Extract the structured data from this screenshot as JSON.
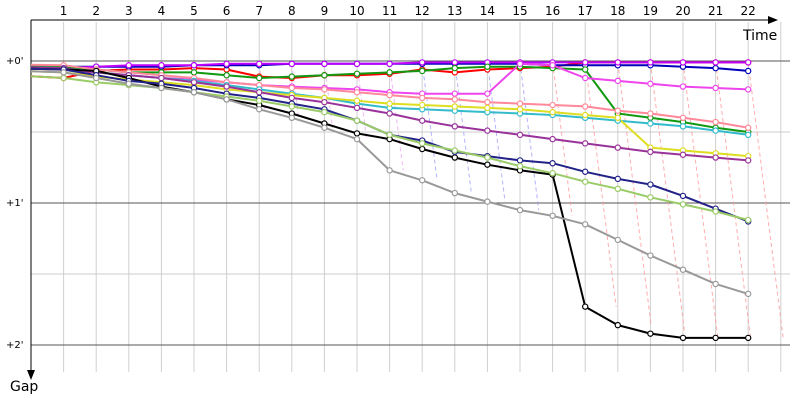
{
  "chart_data": {
    "type": "line",
    "title": "",
    "xlabel": "Time",
    "ylabel": "Gap",
    "x_ticks": [
      "1",
      "2",
      "3",
      "4",
      "5",
      "6",
      "7",
      "8",
      "9",
      "10",
      "11",
      "12",
      "13",
      "14",
      "15",
      "16",
      "17",
      "18",
      "19",
      "20",
      "21",
      "22"
    ],
    "y_ticks": [
      "+0'",
      "+1'",
      "+2'"
    ],
    "xlim": [
      0,
      23.5
    ],
    "ylim": [
      -0.14,
      2.3
    ],
    "grid": true,
    "legend": "none",
    "series": [
      {
        "color": "#ff0000",
        "values": [
          0.12,
          0.07,
          0.06,
          0.06,
          0.05,
          0.06,
          0.11,
          0.12,
          0.1,
          0.1,
          0.09,
          0.06,
          0.08,
          0.06,
          0.05,
          0.04,
          0.01,
          0.01,
          0.01,
          0.01,
          0.01,
          0.01
        ]
      },
      {
        "color": "#0000bb",
        "values": [
          0.04,
          0.04,
          0.04,
          0.04,
          0.03,
          0.03,
          0.03,
          0.02,
          0.02,
          0.02,
          0.02,
          0.02,
          0.02,
          0.02,
          0.02,
          0.03,
          0.03,
          0.03,
          0.03,
          0.04,
          0.05,
          0.07
        ]
      },
      {
        "color": "#c000ff",
        "values": [
          0.05,
          0.04,
          0.03,
          0.03,
          0.03,
          0.02,
          0.02,
          0.02,
          0.02,
          0.02,
          0.02,
          0.01,
          0.01,
          0.01,
          0.01,
          0.01,
          0.01,
          0.01,
          0.01,
          0.01,
          0.01,
          0.01
        ]
      },
      {
        "color": "#119911",
        "values": [
          0.04,
          0.06,
          0.08,
          0.08,
          0.08,
          0.1,
          0.12,
          0.11,
          0.1,
          0.09,
          0.08,
          0.07,
          0.05,
          0.04,
          0.04,
          0.05,
          0.06,
          0.37,
          0.4,
          0.43,
          0.47,
          0.5
        ]
      },
      {
        "color": "#ee44ee",
        "values": [
          0.06,
          0.08,
          0.1,
          0.12,
          0.13,
          0.15,
          0.17,
          0.18,
          0.19,
          0.2,
          0.22,
          0.23,
          0.23,
          0.23,
          0.02,
          0.03,
          0.12,
          0.14,
          0.16,
          0.18,
          0.19,
          0.2
        ]
      },
      {
        "color": "#ff8899",
        "values": [
          0.03,
          0.06,
          0.08,
          0.1,
          0.12,
          0.15,
          0.17,
          0.19,
          0.2,
          0.22,
          0.24,
          0.26,
          0.27,
          0.29,
          0.3,
          0.31,
          0.32,
          0.35,
          0.37,
          0.4,
          0.43,
          0.47
        ]
      },
      {
        "color": "#33bbcc",
        "values": [
          0.05,
          0.08,
          0.1,
          0.12,
          0.14,
          0.17,
          0.2,
          0.23,
          0.26,
          0.3,
          0.33,
          0.34,
          0.35,
          0.36,
          0.37,
          0.38,
          0.4,
          0.42,
          0.44,
          0.46,
          0.49,
          0.52
        ]
      },
      {
        "color": "#dddd22",
        "values": [
          0.08,
          0.11,
          0.13,
          0.15,
          0.17,
          0.2,
          0.22,
          0.24,
          0.26,
          0.28,
          0.3,
          0.31,
          0.32,
          0.33,
          0.34,
          0.36,
          0.38,
          0.4,
          0.61,
          0.63,
          0.65,
          0.67
        ]
      },
      {
        "color": "#993399",
        "values": [
          0.05,
          0.08,
          0.1,
          0.12,
          0.15,
          0.18,
          0.22,
          0.26,
          0.29,
          0.33,
          0.37,
          0.42,
          0.46,
          0.49,
          0.52,
          0.55,
          0.58,
          0.61,
          0.64,
          0.66,
          0.68,
          0.7
        ]
      },
      {
        "color": "#000000",
        "values": [
          0.06,
          0.07,
          0.12,
          0.18,
          0.22,
          0.27,
          0.31,
          0.37,
          0.44,
          0.51,
          0.55,
          0.62,
          0.68,
          0.73,
          0.77,
          0.8,
          1.73,
          1.86,
          1.92,
          1.95,
          1.95,
          1.95
        ]
      },
      {
        "color": "#222288",
        "values": [
          0.06,
          0.1,
          0.14,
          0.16,
          0.19,
          0.23,
          0.26,
          0.3,
          0.34,
          0.42,
          0.52,
          0.56,
          0.64,
          0.67,
          0.7,
          0.72,
          0.78,
          0.83,
          0.87,
          0.95,
          1.04,
          1.13
        ]
      },
      {
        "color": "#99cc66",
        "values": [
          0.12,
          0.15,
          0.17,
          0.19,
          0.22,
          0.25,
          0.28,
          0.32,
          0.36,
          0.42,
          0.52,
          0.58,
          0.63,
          0.68,
          0.74,
          0.79,
          0.85,
          0.9,
          0.96,
          1.01,
          1.06,
          1.12
        ]
      },
      {
        "color": "#999999",
        "values": [
          0.08,
          0.12,
          0.16,
          0.19,
          0.22,
          0.27,
          0.34,
          0.4,
          0.47,
          0.55,
          0.77,
          0.84,
          0.93,
          0.99,
          1.05,
          1.09,
          1.15,
          1.26,
          1.37,
          1.47,
          1.57,
          1.64
        ]
      }
    ]
  }
}
